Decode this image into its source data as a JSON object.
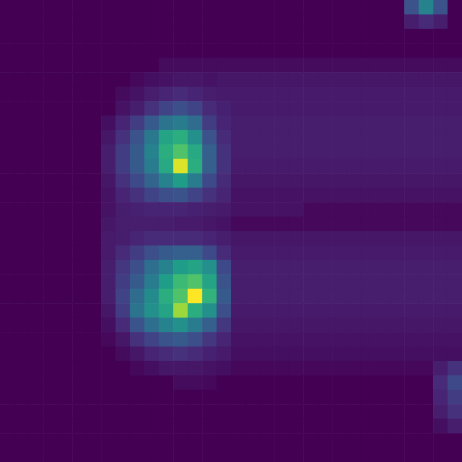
{
  "chart_data": {
    "type": "heatmap",
    "tick_labels": false,
    "zlim": [
      0,
      100
    ],
    "cells": [
      [
        0,
        0,
        0,
        0,
        0,
        0,
        0,
        0,
        0,
        0,
        0,
        0,
        0,
        0,
        0,
        0,
        0,
        0,
        0,
        0,
        0,
        0,
        0,
        0,
        0,
        0,
        0,
        0,
        25,
        45,
        25,
        0
      ],
      [
        0,
        0,
        0,
        0,
        0,
        0,
        0,
        0,
        0,
        0,
        0,
        0,
        0,
        0,
        0,
        0,
        0,
        0,
        0,
        0,
        0,
        0,
        0,
        0,
        0,
        0,
        0,
        0,
        8,
        12,
        8,
        0
      ],
      [
        0,
        0,
        0,
        0,
        0,
        0,
        0,
        0,
        0,
        0,
        0,
        0,
        0,
        0,
        0,
        0,
        0,
        0,
        0,
        0,
        0,
        0,
        0,
        0,
        0,
        0,
        0,
        0,
        0,
        0,
        0,
        0
      ],
      [
        0,
        0,
        0,
        0,
        0,
        0,
        0,
        0,
        0,
        0,
        0,
        0,
        0,
        0,
        0,
        0,
        0,
        0,
        0,
        0,
        0,
        0,
        0,
        0,
        0,
        0,
        0,
        0,
        0,
        0,
        0,
        0
      ],
      [
        0,
        0,
        0,
        0,
        0,
        0,
        0,
        0,
        0,
        0,
        0,
        3,
        3,
        3,
        3,
        3,
        3,
        3,
        3,
        3,
        3,
        3,
        3,
        3,
        3,
        3,
        3,
        3,
        3,
        3,
        3,
        3
      ],
      [
        0,
        0,
        0,
        0,
        0,
        0,
        0,
        0,
        0,
        2,
        4,
        5,
        6,
        6,
        5,
        6,
        6,
        6,
        6,
        6,
        6,
        6,
        6,
        6,
        6,
        6,
        6,
        6,
        6,
        6,
        6,
        6
      ],
      [
        0,
        0,
        0,
        0,
        0,
        0,
        0,
        0,
        3,
        5,
        8,
        10,
        12,
        10,
        8,
        7,
        7,
        7,
        7,
        7,
        7,
        7,
        7,
        7,
        7,
        7,
        7,
        7,
        7,
        7,
        7,
        7
      ],
      [
        0,
        0,
        0,
        0,
        0,
        0,
        0,
        0,
        5,
        8,
        14,
        20,
        24,
        20,
        12,
        9,
        7,
        7,
        7,
        7,
        7,
        7,
        7,
        7,
        7,
        7,
        7,
        7,
        7,
        7,
        7,
        7
      ],
      [
        0,
        0,
        0,
        0,
        0,
        0,
        0,
        4,
        10,
        18,
        28,
        38,
        42,
        35,
        18,
        10,
        8,
        8,
        8,
        8,
        8,
        8,
        8,
        8,
        8,
        8,
        8,
        8,
        8,
        8,
        8,
        8
      ],
      [
        0,
        0,
        0,
        0,
        0,
        0,
        0,
        6,
        14,
        25,
        40,
        58,
        62,
        50,
        25,
        12,
        8,
        8,
        8,
        8,
        8,
        8,
        8,
        8,
        8,
        8,
        8,
        8,
        8,
        8,
        8,
        8
      ],
      [
        0,
        0,
        0,
        0,
        0,
        0,
        0,
        8,
        18,
        28,
        45,
        62,
        72,
        60,
        30,
        14,
        8,
        8,
        8,
        8,
        8,
        8,
        8,
        8,
        8,
        8,
        8,
        8,
        8,
        8,
        8,
        8
      ],
      [
        0,
        0,
        0,
        0,
        0,
        0,
        0,
        8,
        18,
        28,
        42,
        60,
        95,
        62,
        30,
        14,
        7,
        7,
        7,
        7,
        7,
        7,
        7,
        7,
        7,
        7,
        7,
        7,
        7,
        7,
        7,
        7
      ],
      [
        0,
        0,
        0,
        0,
        0,
        0,
        0,
        6,
        14,
        22,
        32,
        45,
        55,
        42,
        22,
        12,
        6,
        6,
        6,
        6,
        6,
        6,
        6,
        6,
        6,
        6,
        6,
        6,
        6,
        6,
        6,
        6
      ],
      [
        0,
        0,
        0,
        0,
        0,
        0,
        0,
        5,
        10,
        14,
        20,
        24,
        26,
        20,
        14,
        10,
        5,
        5,
        5,
        5,
        5,
        5,
        5,
        5,
        5,
        5,
        5,
        5,
        5,
        5,
        5,
        5
      ],
      [
        0,
        0,
        0,
        0,
        0,
        0,
        0,
        5,
        8,
        9,
        10,
        10,
        10,
        9,
        8,
        7,
        5,
        5,
        5,
        5,
        5,
        2,
        2,
        2,
        2,
        2,
        2,
        2,
        2,
        2,
        2,
        2
      ],
      [
        0,
        0,
        0,
        0,
        0,
        0,
        0,
        6,
        8,
        8,
        8,
        8,
        7,
        7,
        6,
        5,
        2,
        2,
        2,
        2,
        2,
        2,
        2,
        2,
        2,
        2,
        2,
        2,
        2,
        2,
        2,
        2
      ],
      [
        0,
        0,
        0,
        0,
        0,
        0,
        0,
        7,
        8,
        10,
        12,
        12,
        12,
        12,
        10,
        8,
        6,
        6,
        6,
        6,
        6,
        6,
        6,
        6,
        6,
        6,
        6,
        6,
        6,
        6,
        6,
        6
      ],
      [
        0,
        0,
        0,
        0,
        0,
        0,
        0,
        7,
        12,
        18,
        24,
        28,
        30,
        30,
        22,
        12,
        7,
        7,
        7,
        7,
        7,
        7,
        7,
        7,
        7,
        7,
        7,
        7,
        7,
        7,
        7,
        7
      ],
      [
        0,
        0,
        0,
        0,
        0,
        0,
        0,
        8,
        16,
        24,
        36,
        45,
        55,
        58,
        50,
        22,
        8,
        8,
        8,
        8,
        8,
        8,
        8,
        8,
        8,
        8,
        8,
        8,
        8,
        8,
        8,
        8
      ],
      [
        0,
        0,
        0,
        0,
        0,
        0,
        0,
        8,
        18,
        28,
        42,
        55,
        68,
        72,
        58,
        26,
        8,
        8,
        8,
        8,
        8,
        8,
        8,
        8,
        8,
        8,
        8,
        8,
        8,
        8,
        8,
        8
      ],
      [
        0,
        0,
        0,
        0,
        0,
        0,
        0,
        8,
        20,
        35,
        48,
        62,
        72,
        100,
        65,
        28,
        8,
        8,
        8,
        8,
        8,
        8,
        8,
        8,
        8,
        8,
        8,
        8,
        8,
        8,
        8,
        8
      ],
      [
        0,
        0,
        0,
        0,
        0,
        0,
        0,
        6,
        18,
        38,
        50,
        58,
        85,
        62,
        50,
        24,
        7,
        7,
        7,
        7,
        7,
        7,
        7,
        7,
        7,
        7,
        7,
        7,
        7,
        7,
        7,
        7
      ],
      [
        0,
        0,
        0,
        0,
        0,
        0,
        0,
        4,
        12,
        26,
        36,
        45,
        50,
        42,
        30,
        16,
        6,
        6,
        6,
        6,
        6,
        6,
        6,
        6,
        6,
        6,
        6,
        6,
        6,
        6,
        6,
        6
      ],
      [
        0,
        0,
        0,
        0,
        0,
        0,
        0,
        2,
        6,
        14,
        20,
        26,
        28,
        24,
        16,
        10,
        5,
        5,
        5,
        5,
        5,
        5,
        5,
        5,
        5,
        5,
        5,
        5,
        5,
        5,
        5,
        5
      ],
      [
        0,
        0,
        0,
        0,
        0,
        0,
        0,
        0,
        3,
        6,
        10,
        12,
        14,
        12,
        9,
        7,
        4,
        4,
        4,
        4,
        4,
        4,
        4,
        4,
        4,
        4,
        4,
        4,
        4,
        4,
        4,
        4
      ],
      [
        0,
        0,
        0,
        0,
        0,
        0,
        0,
        0,
        0,
        2,
        4,
        6,
        6,
        6,
        5,
        4,
        2,
        2,
        2,
        2,
        2,
        2,
        2,
        2,
        2,
        2,
        2,
        2,
        2,
        2,
        8,
        14
      ],
      [
        0,
        0,
        0,
        0,
        0,
        0,
        0,
        0,
        0,
        0,
        0,
        0,
        3,
        3,
        2,
        0,
        0,
        0,
        0,
        0,
        0,
        0,
        0,
        0,
        0,
        0,
        0,
        0,
        0,
        0,
        12,
        22
      ],
      [
        0,
        0,
        0,
        0,
        0,
        0,
        0,
        0,
        0,
        0,
        0,
        0,
        0,
        0,
        0,
        0,
        0,
        0,
        0,
        0,
        0,
        0,
        0,
        0,
        0,
        0,
        0,
        0,
        0,
        0,
        10,
        18
      ],
      [
        0,
        0,
        0,
        0,
        0,
        0,
        0,
        0,
        0,
        0,
        0,
        0,
        0,
        0,
        0,
        0,
        0,
        0,
        0,
        0,
        0,
        0,
        0,
        0,
        0,
        0,
        0,
        0,
        0,
        0,
        8,
        14
      ],
      [
        0,
        0,
        0,
        0,
        0,
        0,
        0,
        0,
        0,
        0,
        0,
        0,
        0,
        0,
        0,
        0,
        0,
        0,
        0,
        0,
        0,
        0,
        0,
        0,
        0,
        0,
        0,
        0,
        0,
        0,
        4,
        8
      ],
      [
        0,
        0,
        0,
        0,
        0,
        0,
        0,
        0,
        0,
        0,
        0,
        0,
        0,
        0,
        0,
        0,
        0,
        0,
        0,
        0,
        0,
        0,
        0,
        0,
        0,
        0,
        0,
        0,
        0,
        0,
        0,
        0
      ],
      [
        0,
        0,
        0,
        0,
        0,
        0,
        0,
        0,
        0,
        0,
        0,
        0,
        0,
        0,
        0,
        0,
        0,
        0,
        0,
        0,
        0,
        0,
        0,
        0,
        0,
        0,
        0,
        0,
        0,
        0,
        0,
        0
      ]
    ]
  }
}
